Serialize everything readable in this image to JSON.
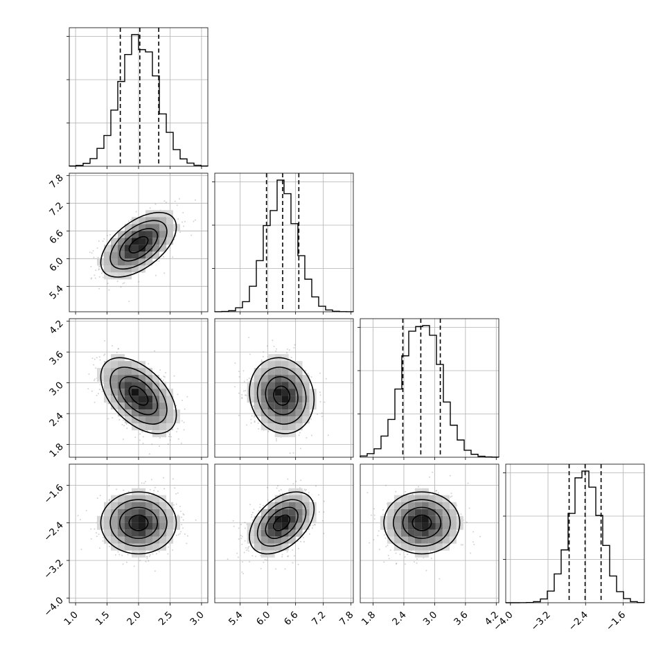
{
  "chart_data": {
    "type": "corner",
    "grid": true,
    "colors": {
      "line": "#000000",
      "points": "#7f7f7f",
      "density": "#000000",
      "grid": "#b0b0b0"
    },
    "params": [
      {
        "mean": 2.0,
        "sd": 0.3,
        "lo": 1.71,
        "med": 2.02,
        "hi": 2.32,
        "range": [
          0.9,
          3.1
        ],
        "ticks": [
          "1.0",
          "1.5",
          "2.0",
          "2.5",
          "3.0"
        ],
        "tick_vals": [
          1.0,
          1.5,
          2.0,
          2.5,
          3.0
        ]
      },
      {
        "mean": 6.3,
        "sd": 0.35,
        "lo": 5.97,
        "med": 6.32,
        "hi": 6.67,
        "range": [
          4.85,
          7.85
        ],
        "ticks": [
          "5.4",
          "6.0",
          "6.6",
          "7.2",
          "7.8"
        ],
        "tick_vals": [
          5.4,
          6.0,
          6.6,
          7.2,
          7.8
        ]
      },
      {
        "mean": 2.75,
        "sd": 0.37,
        "lo": 2.38,
        "med": 2.73,
        "hi": 3.11,
        "range": [
          1.55,
          4.25
        ],
        "ticks": [
          "1.8",
          "2.4",
          "3.0",
          "3.6",
          "4.2"
        ],
        "tick_vals": [
          1.8,
          2.4,
          3.0,
          3.6,
          4.2
        ]
      },
      {
        "mean": -2.4,
        "sd": 0.33,
        "lo": -2.75,
        "med": -2.41,
        "hi": -2.07,
        "range": [
          -4.1,
          -1.15
        ],
        "ticks": [
          "−4.0",
          "−3.2",
          "−2.4",
          "−1.6"
        ],
        "tick_vals": [
          -4.0,
          -3.2,
          -2.4,
          -1.6
        ]
      }
    ],
    "correlations": {
      "0_1": 0.55,
      "0_2": -0.5,
      "1_2": -0.1,
      "0_3": 0.0,
      "1_3": 0.45,
      "2_3": 0.0
    },
    "diag_y_ticks": 3
  }
}
